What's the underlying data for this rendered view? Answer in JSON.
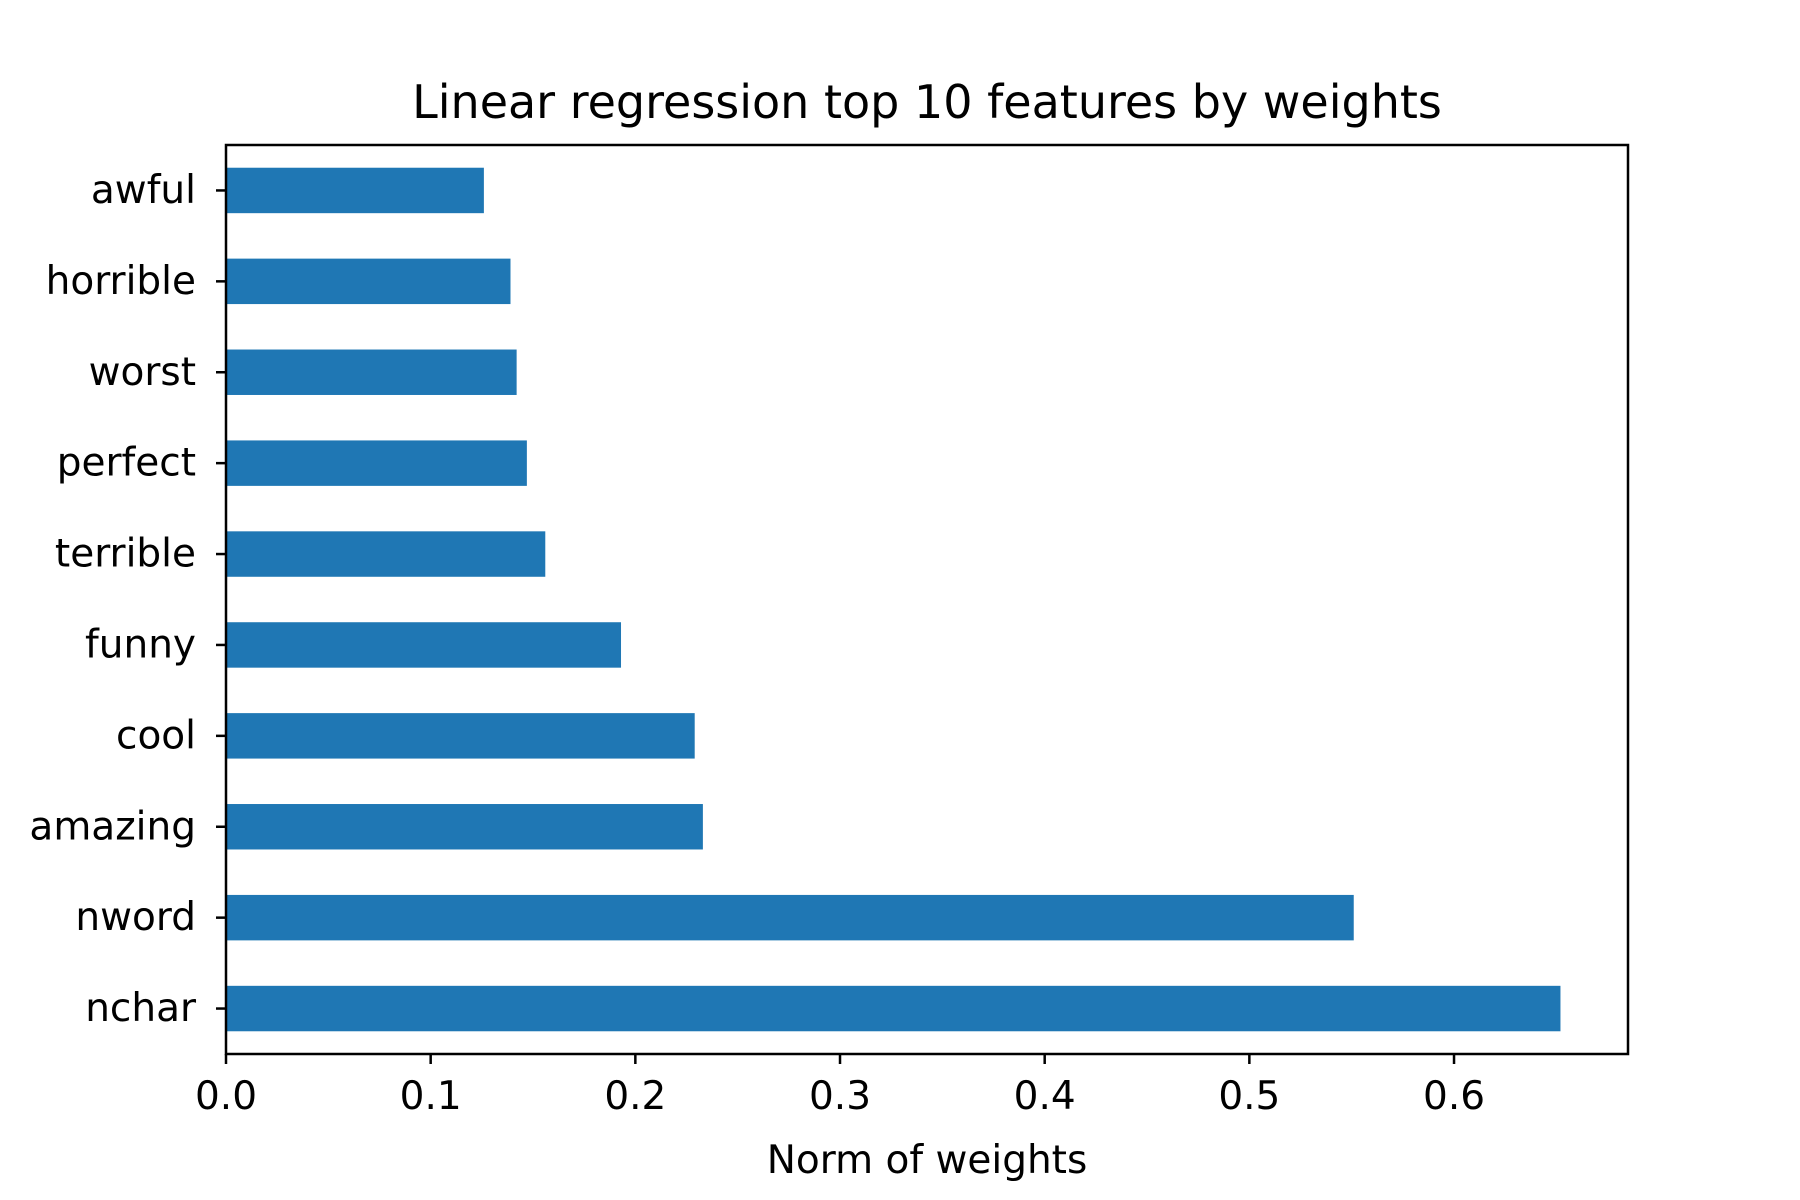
{
  "chart_data": {
    "type": "bar",
    "orientation": "horizontal",
    "title": "Linear regression top 10 features by weights",
    "xlabel": "Norm of weights",
    "ylabel": "",
    "categories": [
      "nchar",
      "nword",
      "amazing",
      "cool",
      "funny",
      "terrible",
      "perfect",
      "worst",
      "horrible",
      "awful"
    ],
    "values": [
      0.652,
      0.551,
      0.233,
      0.229,
      0.193,
      0.156,
      0.147,
      0.142,
      0.139,
      0.126
    ],
    "xlim": [
      0,
      0.685
    ],
    "xticks": [
      "0.0",
      "0.1",
      "0.2",
      "0.3",
      "0.4",
      "0.5",
      "0.6"
    ],
    "bar_color": "#1f77b4",
    "grid": false,
    "legend": "none"
  }
}
